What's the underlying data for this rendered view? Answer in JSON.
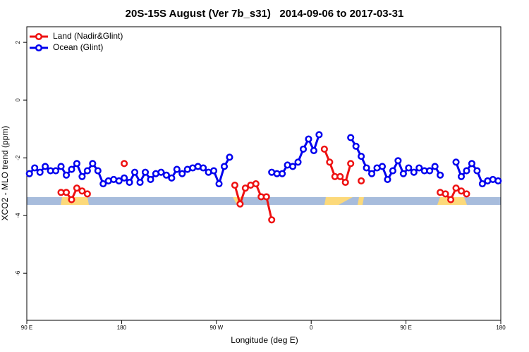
{
  "chart_data": {
    "type": "line",
    "title": "20S-15S August (Ver 7b_s31)   2014-09-06 to 2017-03-31",
    "x_label": "Longitude (deg E)",
    "y_label": "XCO2 - MLO trend (ppm)",
    "xlim": [
      90,
      540
    ],
    "xticks": [
      {
        "value": 90,
        "label": "90 E"
      },
      180,
      {
        "value": 270,
        "label": "90 W"
      },
      {
        "value": 360,
        "label": "0"
      },
      {
        "value": 450,
        "label": "90 E"
      },
      {
        "value": 540,
        "label": "180"
      }
    ],
    "ylim": [
      -7.63,
      2.54
    ],
    "yticks": [
      2,
      0,
      -2,
      -4,
      -6
    ],
    "legend": "topleft",
    "x": [
      92.5,
      97.5,
      102.5,
      107.5,
      112.5,
      117.5,
      122.5,
      127.5,
      132.5,
      137.5,
      142.5,
      147.5,
      152.5,
      157.5,
      162.5,
      167.5,
      172.5,
      177.5,
      182.5,
      187.5,
      192.5,
      197.5,
      202.5,
      207.5,
      212.5,
      217.5,
      222.5,
      227.5,
      232.5,
      237.5,
      242.5,
      247.5,
      252.5,
      257.5,
      262.5,
      267.5,
      272.5,
      277.5,
      282.5,
      287.5,
      292.5,
      297.5,
      302.5,
      307.5,
      312.5,
      317.5,
      322.5,
      327.5,
      332.5,
      337.5,
      342.5,
      347.5,
      352.5,
      357.5,
      362.5,
      367.5,
      372.5,
      377.5,
      382.5,
      387.5,
      392.5,
      397.5,
      402.5,
      407.5,
      412.5,
      417.5,
      422.5,
      427.5,
      432.5,
      437.5,
      442.5,
      447.5,
      452.5,
      457.5,
      462.5,
      467.5,
      472.5,
      477.5,
      482.5,
      487.5,
      492.5,
      497.5,
      502.5,
      507.5,
      512.5,
      517.5,
      522.5,
      527.5,
      532.5,
      537.5
    ],
    "series": [
      {
        "name": "Land (Nadir&Glint)",
        "color": "#ee1111",
        "values": [
          null,
          null,
          null,
          null,
          null,
          null,
          -3.2,
          -3.2,
          -3.45,
          -3.05,
          -3.15,
          -3.25,
          null,
          null,
          null,
          null,
          null,
          null,
          -2.2,
          null,
          null,
          null,
          null,
          null,
          null,
          null,
          null,
          null,
          null,
          null,
          null,
          null,
          null,
          null,
          null,
          null,
          null,
          null,
          null,
          -2.95,
          -3.6,
          -3.05,
          -2.95,
          -2.9,
          -3.35,
          -3.35,
          -4.15,
          null,
          null,
          null,
          null,
          null,
          null,
          null,
          null,
          null,
          -1.7,
          -2.15,
          -2.65,
          -2.65,
          -2.85,
          -2.2,
          null,
          -2.8,
          null,
          null,
          null,
          null,
          null,
          null,
          null,
          null,
          null,
          null,
          null,
          null,
          null,
          null,
          -3.2,
          -3.25,
          -3.45,
          -3.05,
          -3.15,
          -3.25,
          null,
          null,
          null,
          null,
          null,
          null
        ]
      },
      {
        "name": "Ocean (Glint)",
        "color": "#0000ee",
        "values": [
          -2.55,
          -2.35,
          -2.5,
          -2.3,
          -2.45,
          -2.45,
          -2.3,
          -2.6,
          -2.4,
          -2.2,
          -2.65,
          -2.45,
          -2.2,
          -2.45,
          -2.9,
          -2.8,
          -2.75,
          -2.8,
          -2.7,
          -2.85,
          -2.5,
          -2.85,
          -2.5,
          -2.75,
          -2.55,
          -2.5,
          -2.6,
          -2.7,
          -2.4,
          -2.55,
          -2.4,
          -2.35,
          -2.3,
          -2.35,
          -2.5,
          -2.45,
          -2.9,
          -2.3,
          -1.98,
          null,
          null,
          null,
          null,
          null,
          null,
          null,
          -2.5,
          -2.55,
          -2.55,
          -2.25,
          -2.3,
          -2.15,
          -1.7,
          -1.35,
          -1.75,
          -1.2,
          null,
          null,
          null,
          null,
          null,
          -1.3,
          -1.6,
          -1.95,
          -2.35,
          -2.55,
          -2.35,
          -2.3,
          -2.75,
          -2.45,
          -2.1,
          -2.55,
          -2.35,
          -2.5,
          -2.35,
          -2.45,
          -2.45,
          -2.3,
          -2.6,
          null,
          null,
          -2.15,
          -2.65,
          -2.45,
          -2.2,
          -2.45,
          -2.9,
          -2.8,
          -2.75,
          -2.8
        ]
      }
    ]
  }
}
